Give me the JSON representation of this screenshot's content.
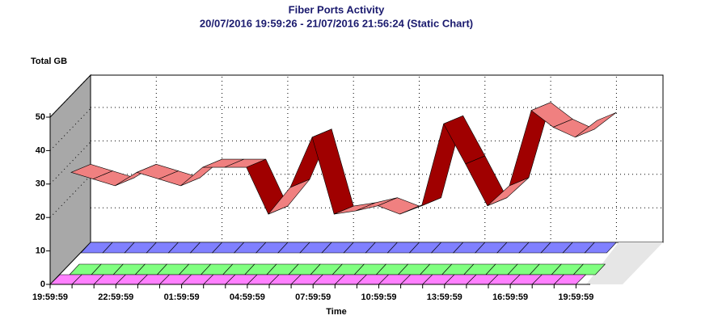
{
  "chart_data": {
    "type": "ribbon3d",
    "title": "Fiber Ports Activity",
    "subtitle": "20/07/2016 19:59:26 - 21/07/2016 21:56:24 (Static Chart)",
    "y_label": "Total GB",
    "x_label": "Time",
    "categories": [
      "19:59:59",
      null,
      null,
      "22:59:59",
      null,
      null,
      "01:59:59",
      null,
      null,
      "04:59:59",
      null,
      null,
      "07:59:59",
      null,
      null,
      "10:59:59",
      null,
      null,
      "13:59:59",
      null,
      null,
      "16:59:59",
      null,
      null,
      "19:59:59"
    ],
    "series": [
      {
        "color": "#f08080",
        "values": [
          33.5,
          31.5,
          29.5,
          33.5,
          31.5,
          29.5,
          35,
          35,
          35,
          21,
          29,
          44,
          21,
          22,
          23.5,
          21,
          23.5,
          48,
          36,
          23.5,
          29.5,
          52,
          47,
          44,
          49
        ]
      },
      {
        "color": "#8080ff",
        "values": [
          0,
          0,
          0,
          0,
          0,
          0,
          0,
          0,
          0,
          0,
          0,
          0,
          0,
          0,
          0,
          0,
          0,
          0,
          0,
          0,
          0,
          0,
          0,
          0,
          0
        ]
      },
      {
        "color": "#80ff80",
        "values": [
          0,
          0,
          0,
          0,
          0,
          0,
          0,
          0,
          0,
          0,
          0,
          0,
          0,
          0,
          0,
          0,
          0,
          0,
          0,
          0,
          0,
          0,
          0,
          0,
          0
        ]
      },
      {
        "color": "#ff80ff",
        "values": [
          0,
          0,
          0,
          0,
          0,
          0,
          0,
          0,
          0,
          0,
          0,
          0,
          0,
          0,
          0,
          0,
          0,
          0,
          0,
          0,
          0,
          0,
          0,
          0,
          0
        ]
      }
    ],
    "ylim": [
      0,
      50
    ],
    "yticks": [
      0,
      10,
      20,
      30,
      40,
      50
    ],
    "grid": true
  }
}
